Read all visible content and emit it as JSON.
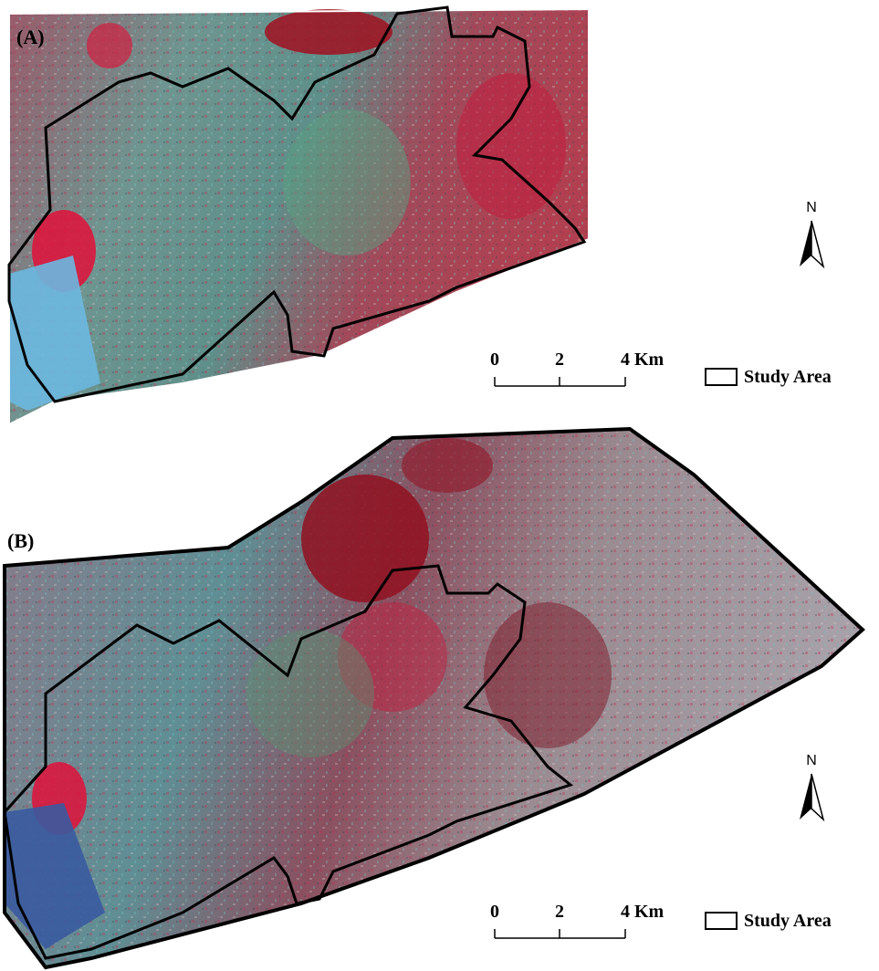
{
  "panels": [
    {
      "label": "(A)",
      "north": "N",
      "scale_bar": [
        "0",
        "2",
        "4 Km"
      ],
      "legend": "Study Area"
    },
    {
      "label": "(B)",
      "north": "N",
      "scale_bar": [
        "0",
        "2",
        "4 Km"
      ],
      "legend": "Study Area"
    }
  ]
}
